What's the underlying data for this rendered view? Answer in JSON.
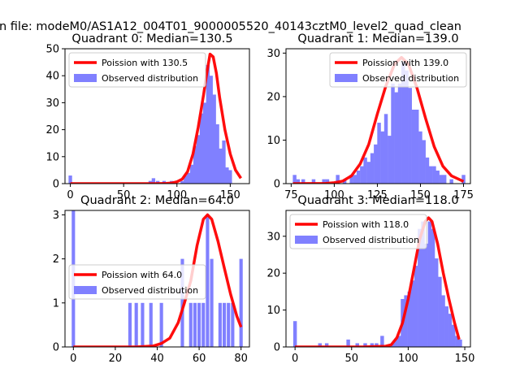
{
  "figure": {
    "suptitle": "n file: modeM0/AS1A12_004T01_9000005520_40143cztM0_level2_quad_clean"
  },
  "colors": {
    "bars": "#8080ff",
    "curve": "#ff0000"
  },
  "chart_data": [
    {
      "type": "bar",
      "title": "Quadrant 0: Median=130.5",
      "xlim": [
        -5,
        168
      ],
      "ylim": [
        0,
        50
      ],
      "xticks": [
        0,
        50,
        100,
        150
      ],
      "yticks": [
        0,
        10,
        20,
        30,
        40,
        50
      ],
      "legend": {
        "placement": "top-left",
        "curve_label": "Poission with 130.5",
        "bar_label": "Observed distribution"
      },
      "bar_width": 3.3,
      "bars": [
        [
          0,
          3
        ],
        [
          75,
          1
        ],
        [
          78,
          2
        ],
        [
          82,
          1
        ],
        [
          88,
          1
        ],
        [
          95,
          1
        ],
        [
          105,
          1
        ],
        [
          108,
          3
        ],
        [
          111,
          4
        ],
        [
          114,
          7
        ],
        [
          117,
          14
        ],
        [
          120,
          18
        ],
        [
          123,
          26
        ],
        [
          126,
          30
        ],
        [
          129,
          44
        ],
        [
          132,
          40
        ],
        [
          135,
          33
        ],
        [
          138,
          22
        ],
        [
          141,
          13
        ],
        [
          144,
          16
        ],
        [
          147,
          6
        ],
        [
          150,
          5
        ]
      ],
      "curve": [
        [
          0,
          0
        ],
        [
          40,
          0
        ],
        [
          60,
          0
        ],
        [
          80,
          0
        ],
        [
          90,
          0.05
        ],
        [
          95,
          0.2
        ],
        [
          100,
          0.7
        ],
        [
          105,
          1.7
        ],
        [
          110,
          4.5
        ],
        [
          115,
          11
        ],
        [
          120,
          21
        ],
        [
          125,
          33
        ],
        [
          128,
          41
        ],
        [
          131,
          48
        ],
        [
          134,
          47
        ],
        [
          137,
          41
        ],
        [
          140,
          32
        ],
        [
          145,
          20
        ],
        [
          150,
          11
        ],
        [
          155,
          5
        ],
        [
          160,
          2
        ]
      ]
    },
    {
      "type": "bar",
      "title": "Quadrant 1: Median=139.0",
      "xlim": [
        72,
        179
      ],
      "ylim": [
        0,
        31
      ],
      "xticks": [
        75,
        100,
        125,
        150,
        175
      ],
      "yticks": [
        0,
        10,
        20,
        30
      ],
      "legend": {
        "placement": "top-right",
        "curve_label": "Poission with 139.0",
        "bar_label": "Observed distribution"
      },
      "bar_width": 2.1,
      "bars": [
        [
          77,
          2
        ],
        [
          79,
          1
        ],
        [
          82,
          1
        ],
        [
          88,
          1
        ],
        [
          94,
          1
        ],
        [
          96,
          1
        ],
        [
          102,
          2
        ],
        [
          106,
          1
        ],
        [
          110,
          2
        ],
        [
          112,
          2
        ],
        [
          114,
          3
        ],
        [
          116,
          4
        ],
        [
          118,
          6
        ],
        [
          120,
          5
        ],
        [
          122,
          7
        ],
        [
          124,
          9
        ],
        [
          126,
          14
        ],
        [
          128,
          12
        ],
        [
          130,
          16
        ],
        [
          132,
          11
        ],
        [
          134,
          23
        ],
        [
          136,
          21
        ],
        [
          138,
          23
        ],
        [
          140,
          28
        ],
        [
          142,
          26
        ],
        [
          144,
          22
        ],
        [
          146,
          17
        ],
        [
          148,
          17
        ],
        [
          150,
          12
        ],
        [
          152,
          10
        ],
        [
          154,
          6
        ],
        [
          156,
          4
        ],
        [
          158,
          4
        ],
        [
          160,
          3
        ],
        [
          162,
          2
        ],
        [
          164,
          2
        ],
        [
          168,
          1
        ],
        [
          175,
          2
        ]
      ],
      "curve": [
        [
          76,
          0
        ],
        [
          95,
          0.05
        ],
        [
          100,
          0.2
        ],
        [
          105,
          0.6
        ],
        [
          110,
          1.8
        ],
        [
          115,
          4.5
        ],
        [
          120,
          9
        ],
        [
          125,
          16
        ],
        [
          130,
          22.5
        ],
        [
          135,
          27.5
        ],
        [
          139,
          29
        ],
        [
          143,
          27.5
        ],
        [
          148,
          22
        ],
        [
          153,
          15
        ],
        [
          158,
          8.5
        ],
        [
          163,
          4
        ],
        [
          168,
          1.8
        ],
        [
          175,
          0.5
        ]
      ]
    },
    {
      "type": "bar",
      "title": "Quadrant 2: Median=64.0",
      "xlim": [
        -4,
        84
      ],
      "ylim": [
        0,
        3.1
      ],
      "xticks": [
        0,
        20,
        40,
        60,
        80
      ],
      "yticks": [
        0,
        1,
        2,
        3
      ],
      "legend": {
        "placement": "center-left",
        "curve_label": "Poission with 64.0",
        "bar_label": "Observed distribution"
      },
      "bar_width": 1.6,
      "bars": [
        [
          0,
          3.1
        ],
        [
          27,
          1
        ],
        [
          30,
          1
        ],
        [
          33,
          1
        ],
        [
          37,
          1
        ],
        [
          42,
          1
        ],
        [
          52,
          2
        ],
        [
          56,
          1
        ],
        [
          58,
          1
        ],
        [
          60,
          1
        ],
        [
          62,
          1
        ],
        [
          64,
          3
        ],
        [
          66,
          2
        ],
        [
          70,
          1
        ],
        [
          72,
          1
        ],
        [
          74,
          1
        ],
        [
          76,
          1
        ],
        [
          80,
          2
        ]
      ],
      "curve": [
        [
          0,
          0
        ],
        [
          30,
          0
        ],
        [
          38,
          0.02
        ],
        [
          42,
          0.08
        ],
        [
          46,
          0.2
        ],
        [
          50,
          0.55
        ],
        [
          53,
          1.0
        ],
        [
          56,
          1.5
        ],
        [
          59,
          2.3
        ],
        [
          62,
          2.9
        ],
        [
          64,
          3.0
        ],
        [
          66,
          2.9
        ],
        [
          69,
          2.4
        ],
        [
          72,
          1.8
        ],
        [
          75,
          1.2
        ],
        [
          78,
          0.7
        ],
        [
          80,
          0.45
        ]
      ]
    },
    {
      "type": "bar",
      "title": "Quadrant 3: Median=118.0",
      "xlim": [
        -8,
        155
      ],
      "ylim": [
        0,
        37
      ],
      "xticks": [
        0,
        50,
        100,
        150
      ],
      "yticks": [
        0,
        10,
        20,
        30
      ],
      "legend": {
        "placement": "top-left",
        "curve_label": "Poission with 118.0",
        "bar_label": "Observed distribution"
      },
      "bar_width": 3.2,
      "bars": [
        [
          0,
          7
        ],
        [
          22,
          1
        ],
        [
          28,
          1
        ],
        [
          47,
          2
        ],
        [
          55,
          1
        ],
        [
          62,
          1
        ],
        [
          68,
          1
        ],
        [
          72,
          1
        ],
        [
          77,
          3
        ],
        [
          86,
          1
        ],
        [
          89,
          2
        ],
        [
          92,
          3
        ],
        [
          95,
          13
        ],
        [
          98,
          14
        ],
        [
          101,
          15
        ],
        [
          104,
          18
        ],
        [
          107,
          22
        ],
        [
          110,
          32
        ],
        [
          113,
          34
        ],
        [
          116,
          28
        ],
        [
          119,
          34
        ],
        [
          122,
          32
        ],
        [
          125,
          24
        ],
        [
          128,
          19
        ],
        [
          131,
          14
        ],
        [
          134,
          11
        ],
        [
          137,
          9
        ],
        [
          140,
          6
        ],
        [
          143,
          3
        ],
        [
          146,
          2
        ]
      ],
      "curve": [
        [
          0,
          0
        ],
        [
          60,
          0
        ],
        [
          80,
          0.2
        ],
        [
          85,
          0.6
        ],
        [
          90,
          2.5
        ],
        [
          95,
          6.5
        ],
        [
          100,
          13
        ],
        [
          105,
          21
        ],
        [
          110,
          29
        ],
        [
          115,
          34
        ],
        [
          118,
          35
        ],
        [
          121,
          34
        ],
        [
          126,
          28
        ],
        [
          131,
          20
        ],
        [
          136,
          13
        ],
        [
          141,
          6.5
        ],
        [
          145,
          2
        ]
      ]
    }
  ]
}
